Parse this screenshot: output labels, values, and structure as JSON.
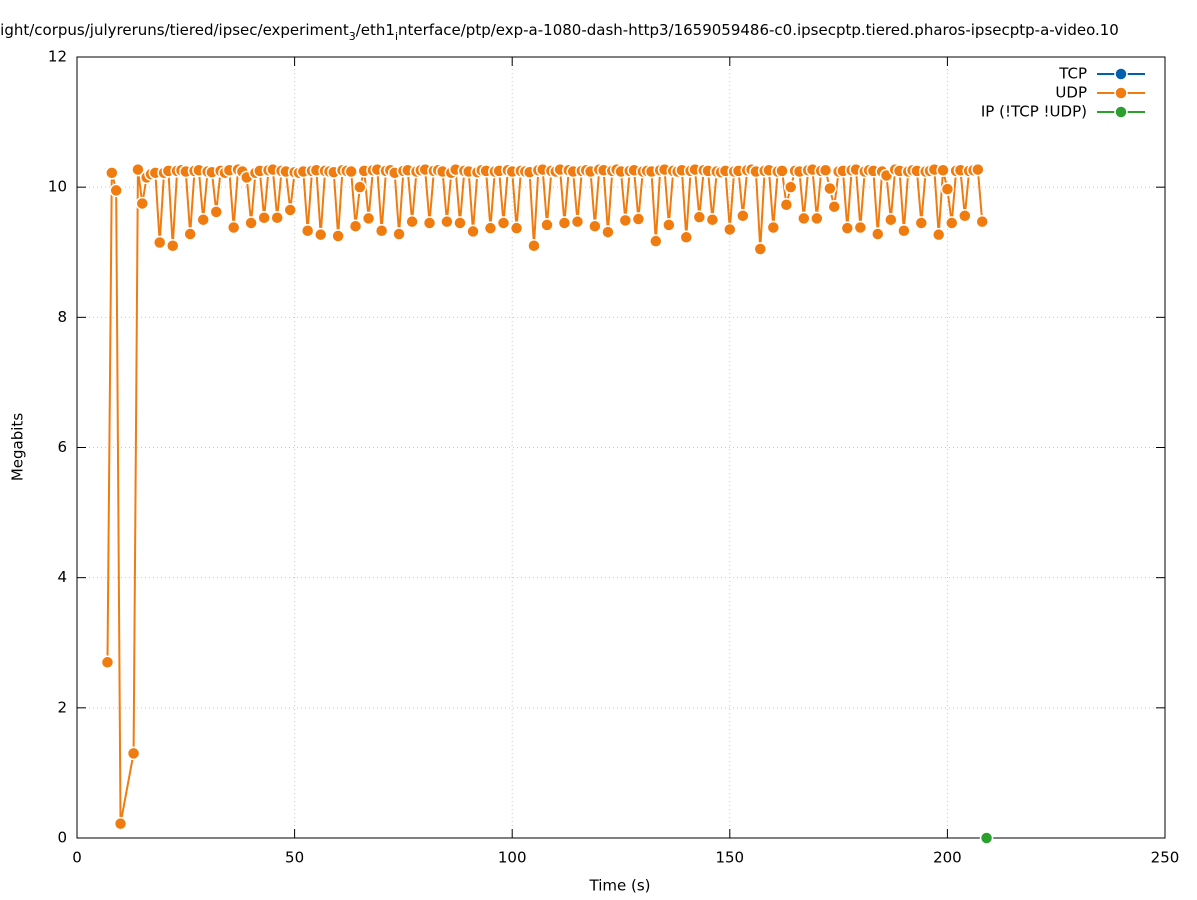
{
  "chart_data": {
    "type": "line",
    "title": [
      "light/corpus/julyreruns/tiered/ipsec/experiment",
      "3",
      "/eth1",
      "i",
      "nterface/ptp/exp-a-1080-dash-http3/1659059486-c0.ipsecptp.tiered.pharos-ipsecptp-a-video.10"
    ],
    "xlabel": "Time (s)",
    "ylabel": "Megabits",
    "xlim": [
      0,
      250
    ],
    "xticks": [
      0,
      50,
      100,
      150,
      200,
      250
    ],
    "ylim": [
      0,
      12
    ],
    "yticks": [
      0,
      2,
      4,
      6,
      8,
      10,
      12
    ],
    "grid": true,
    "legend": "top-right",
    "series": [
      {
        "name": "TCP",
        "color": "#0060ad",
        "x": [],
        "values": []
      },
      {
        "name": "UDP",
        "color": "#f07b0f",
        "x": [
          7,
          8,
          9,
          10,
          13,
          14,
          15,
          16,
          17,
          18,
          19,
          20,
          21,
          22,
          23,
          24,
          25,
          26,
          27,
          28,
          29,
          30,
          31,
          32,
          33,
          34,
          35,
          36,
          37,
          38,
          39,
          40,
          41,
          42,
          43,
          44,
          45,
          46,
          47,
          48,
          49,
          50,
          51,
          52,
          53,
          54,
          55,
          56,
          57,
          58,
          59,
          60,
          61,
          62,
          63,
          64,
          65,
          66,
          67,
          68,
          69,
          70,
          71,
          72,
          73,
          74,
          75,
          76,
          77,
          78,
          79,
          80,
          81,
          82,
          83,
          84,
          85,
          86,
          87,
          88,
          89,
          90,
          91,
          92,
          93,
          94,
          95,
          96,
          97,
          98,
          99,
          100,
          101,
          102,
          103,
          104,
          105,
          106,
          107,
          108,
          109,
          110,
          111,
          112,
          113,
          114,
          115,
          116,
          117,
          118,
          119,
          120,
          121,
          122,
          123,
          124,
          125,
          126,
          127,
          128,
          129,
          130,
          131,
          132,
          133,
          134,
          135,
          136,
          137,
          138,
          139,
          140,
          141,
          142,
          143,
          144,
          145,
          146,
          147,
          148,
          149,
          150,
          151,
          152,
          153,
          154,
          155,
          156,
          157,
          158,
          159,
          160,
          161,
          162,
          163,
          164,
          165,
          166,
          167,
          168,
          169,
          170,
          171,
          172,
          173,
          174,
          175,
          176,
          177,
          178,
          179,
          180,
          181,
          182,
          183,
          184,
          185,
          186,
          187,
          188,
          189,
          190,
          191,
          192,
          193,
          194,
          195,
          196,
          197,
          198,
          199,
          200,
          201,
          202,
          203,
          204,
          205,
          206,
          207,
          208
        ],
        "values": [
          2.7,
          10.22,
          9.95,
          0.22,
          1.3,
          10.27,
          9.75,
          10.15,
          10.2,
          10.22,
          9.15,
          10.22,
          10.25,
          9.1,
          10.25,
          10.26,
          10.24,
          9.28,
          10.25,
          10.26,
          9.5,
          10.24,
          10.23,
          9.62,
          10.25,
          10.22,
          10.26,
          9.38,
          10.27,
          10.24,
          10.15,
          9.45,
          10.22,
          10.25,
          9.53,
          10.26,
          10.27,
          9.53,
          10.25,
          10.24,
          9.65,
          10.23,
          10.22,
          10.24,
          9.33,
          10.25,
          10.26,
          9.27,
          10.25,
          10.24,
          10.23,
          9.25,
          10.26,
          10.25,
          10.24,
          9.4,
          10.0,
          10.25,
          9.52,
          10.26,
          10.27,
          9.33,
          10.25,
          10.26,
          10.22,
          9.28,
          10.25,
          10.26,
          9.47,
          10.24,
          10.26,
          10.27,
          9.45,
          10.25,
          10.26,
          10.24,
          9.47,
          10.22,
          10.27,
          9.45,
          10.25,
          10.24,
          9.32,
          10.23,
          10.26,
          10.25,
          9.37,
          10.24,
          10.25,
          9.45,
          10.26,
          10.24,
          9.37,
          10.25,
          10.24,
          10.23,
          9.1,
          10.26,
          10.27,
          9.42,
          10.25,
          10.24,
          10.27,
          9.45,
          10.26,
          10.24,
          9.47,
          10.25,
          10.26,
          10.24,
          9.4,
          10.27,
          10.26,
          9.31,
          10.25,
          10.27,
          10.24,
          9.49,
          10.25,
          10.26,
          9.51,
          10.24,
          10.25,
          10.24,
          9.17,
          10.26,
          10.27,
          9.42,
          10.25,
          10.24,
          10.26,
          9.23,
          10.25,
          10.27,
          9.54,
          10.26,
          10.25,
          9.5,
          10.24,
          10.23,
          10.25,
          9.35,
          10.24,
          10.25,
          9.56,
          10.26,
          10.27,
          10.24,
          9.05,
          10.25,
          10.26,
          9.38,
          10.24,
          10.25,
          9.73,
          10.0,
          10.25,
          10.24,
          9.52,
          10.26,
          10.27,
          9.52,
          10.25,
          10.26,
          9.98,
          9.7,
          10.24,
          10.25,
          9.37,
          10.26,
          10.27,
          9.38,
          10.24,
          10.26,
          10.25,
          9.28,
          10.24,
          10.18,
          9.5,
          10.27,
          10.25,
          9.33,
          10.24,
          10.26,
          10.25,
          9.45,
          10.24,
          10.25,
          10.27,
          9.27,
          10.26,
          9.97,
          9.45,
          10.25,
          10.26,
          9.56,
          10.25,
          10.26,
          10.27,
          9.47
        ]
      },
      {
        "name": "IP (!TCP  !UDP)",
        "color": "#2ca02c",
        "x": [
          209
        ],
        "values": [
          0
        ]
      }
    ]
  }
}
